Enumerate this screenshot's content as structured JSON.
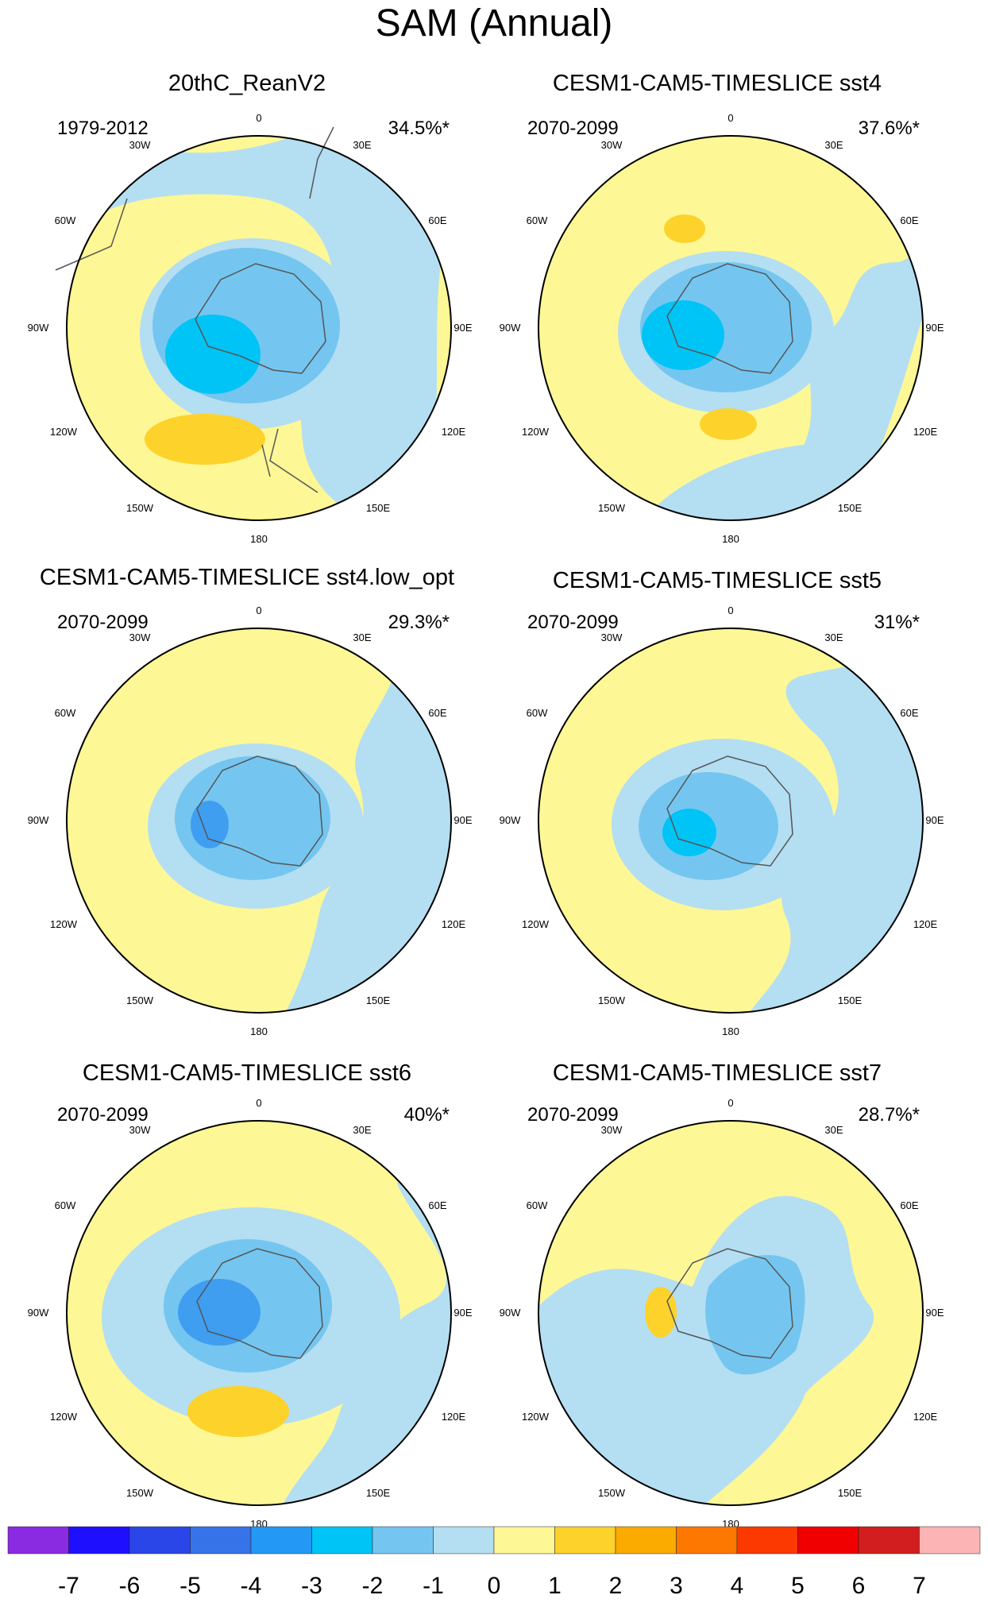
{
  "title": "SAM (Annual)",
  "longitude_labels": [
    "0",
    "30E",
    "60E",
    "90E",
    "120E",
    "150E",
    "180",
    "150W",
    "120W",
    "90W",
    "60W",
    "30W"
  ],
  "panels": [
    {
      "title": "20thC_ReanV2",
      "period": "1979-2012",
      "variance": "34.5%*"
    },
    {
      "title": "CESM1-CAM5-TIMESLICE sst4",
      "period": "2070-2099",
      "variance": "37.6%*"
    },
    {
      "title": "CESM1-CAM5-TIMESLICE sst4.low_opt",
      "period": "2070-2099",
      "variance": "29.3%*"
    },
    {
      "title": "CESM1-CAM5-TIMESLICE sst5",
      "period": "2070-2099",
      "variance": "31%*"
    },
    {
      "title": "CESM1-CAM5-TIMESLICE sst6",
      "period": "2070-2099",
      "variance": "40%*"
    },
    {
      "title": "CESM1-CAM5-TIMESLICE sst7",
      "period": "2070-2099",
      "variance": "28.7%*"
    }
  ],
  "colorbar": {
    "labels": [
      "-7",
      "-6",
      "-5",
      "-4",
      "-3",
      "-2",
      "-1",
      "0",
      "1",
      "2",
      "3",
      "4",
      "5",
      "6",
      "7"
    ],
    "colors": [
      "#8a2be2",
      "#1e10ff",
      "#2a46e8",
      "#3773e8",
      "#2399f5",
      "#00c4f5",
      "#74c6f0",
      "#b4def2",
      "#fdf796",
      "#fdd22a",
      "#fbaa00",
      "#fc7800",
      "#fc3a00",
      "#f00000",
      "#d21e1e",
      "#fcb4b4"
    ]
  },
  "palette": {
    "land_outline": "#555555",
    "map_border": "#000000"
  }
}
